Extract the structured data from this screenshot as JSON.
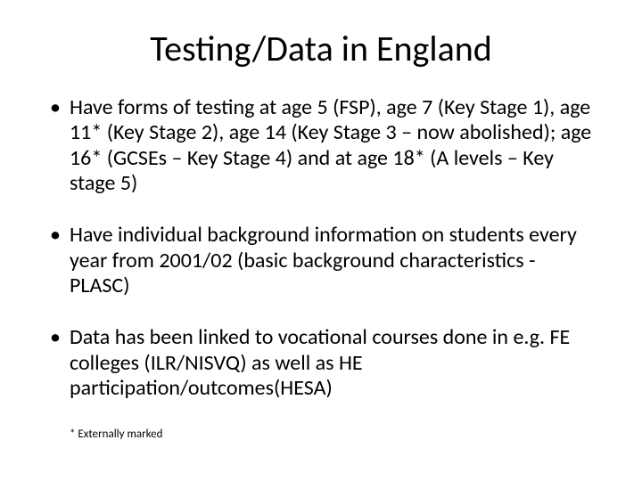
{
  "title": "Testing/Data in England",
  "bullets": [
    "Have forms of testing at age 5 (FSP), age 7 (Key Stage 1), age 11* (Key Stage 2), age 14 (Key Stage 3 – now abolished); age 16* (GCSEs – Key Stage 4) and at age 18* (A levels – Key stage 5)",
    "Have individual background information on students every year from 2001/02 (basic background characteristics - PLASC)",
    "Data has been linked to vocational courses done in e.g. FE colleges (ILR/NISVQ) as well as HE participation/outcomes(HESA)"
  ],
  "footnote": "* Externally marked",
  "style": {
    "background_color": "#ffffff",
    "text_color": "#000000",
    "title_fontsize": 40,
    "body_fontsize": 24,
    "footnote_fontsize": 13,
    "font_family": "Calibri"
  }
}
